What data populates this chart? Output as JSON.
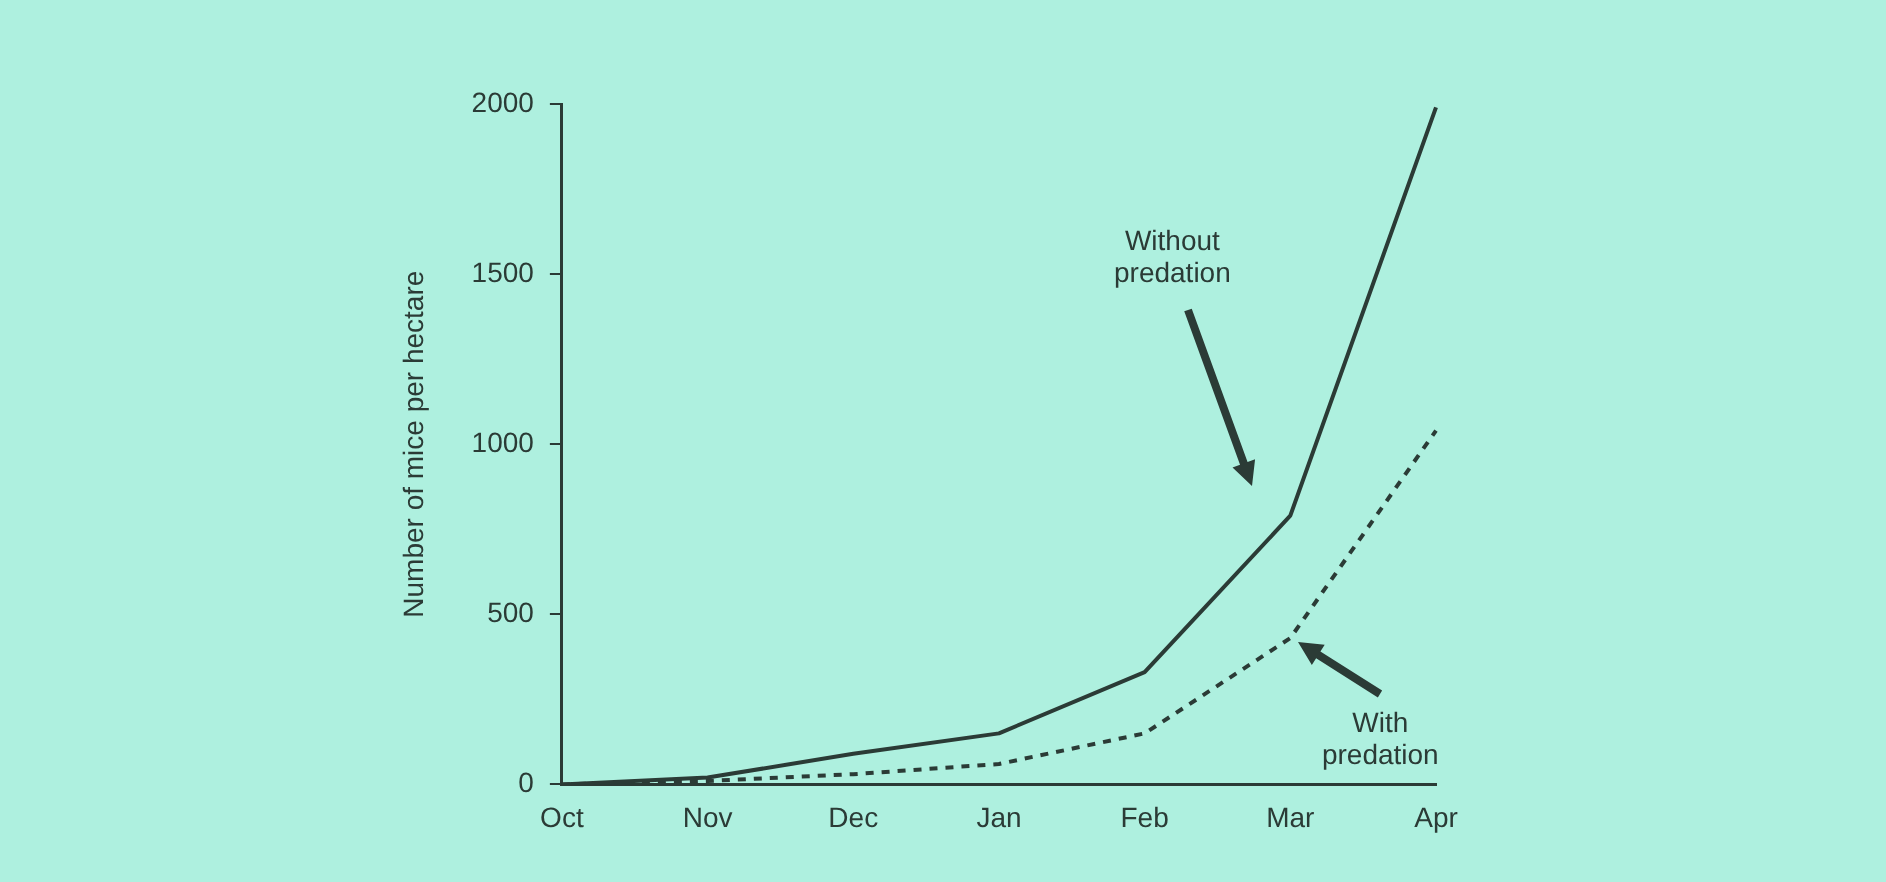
{
  "chart_data": {
    "type": "line",
    "ylabel": "Number of mice per hectare",
    "categories": [
      "Oct",
      "Nov",
      "Dec",
      "Jan",
      "Feb",
      "Mar",
      "Apr"
    ],
    "series": [
      {
        "color": "#2b3b36",
        "line_style": "solid",
        "values": [
          0,
          20,
          90,
          150,
          330,
          790,
          1990
        ]
      },
      {
        "color": "#2b3b36",
        "line_style": "dashed",
        "values": [
          0,
          10,
          30,
          60,
          150,
          430,
          1040
        ]
      }
    ],
    "ylim": [
      0,
      2000
    ],
    "yticks": [
      0,
      500,
      1000,
      1500,
      2000
    ],
    "grid": false,
    "legend": false,
    "marker": "none",
    "annotations": [
      "Without predation",
      {
        "text": "With predation",
        "x": "Mar",
        "y": 430
      }
    ]
  }
}
